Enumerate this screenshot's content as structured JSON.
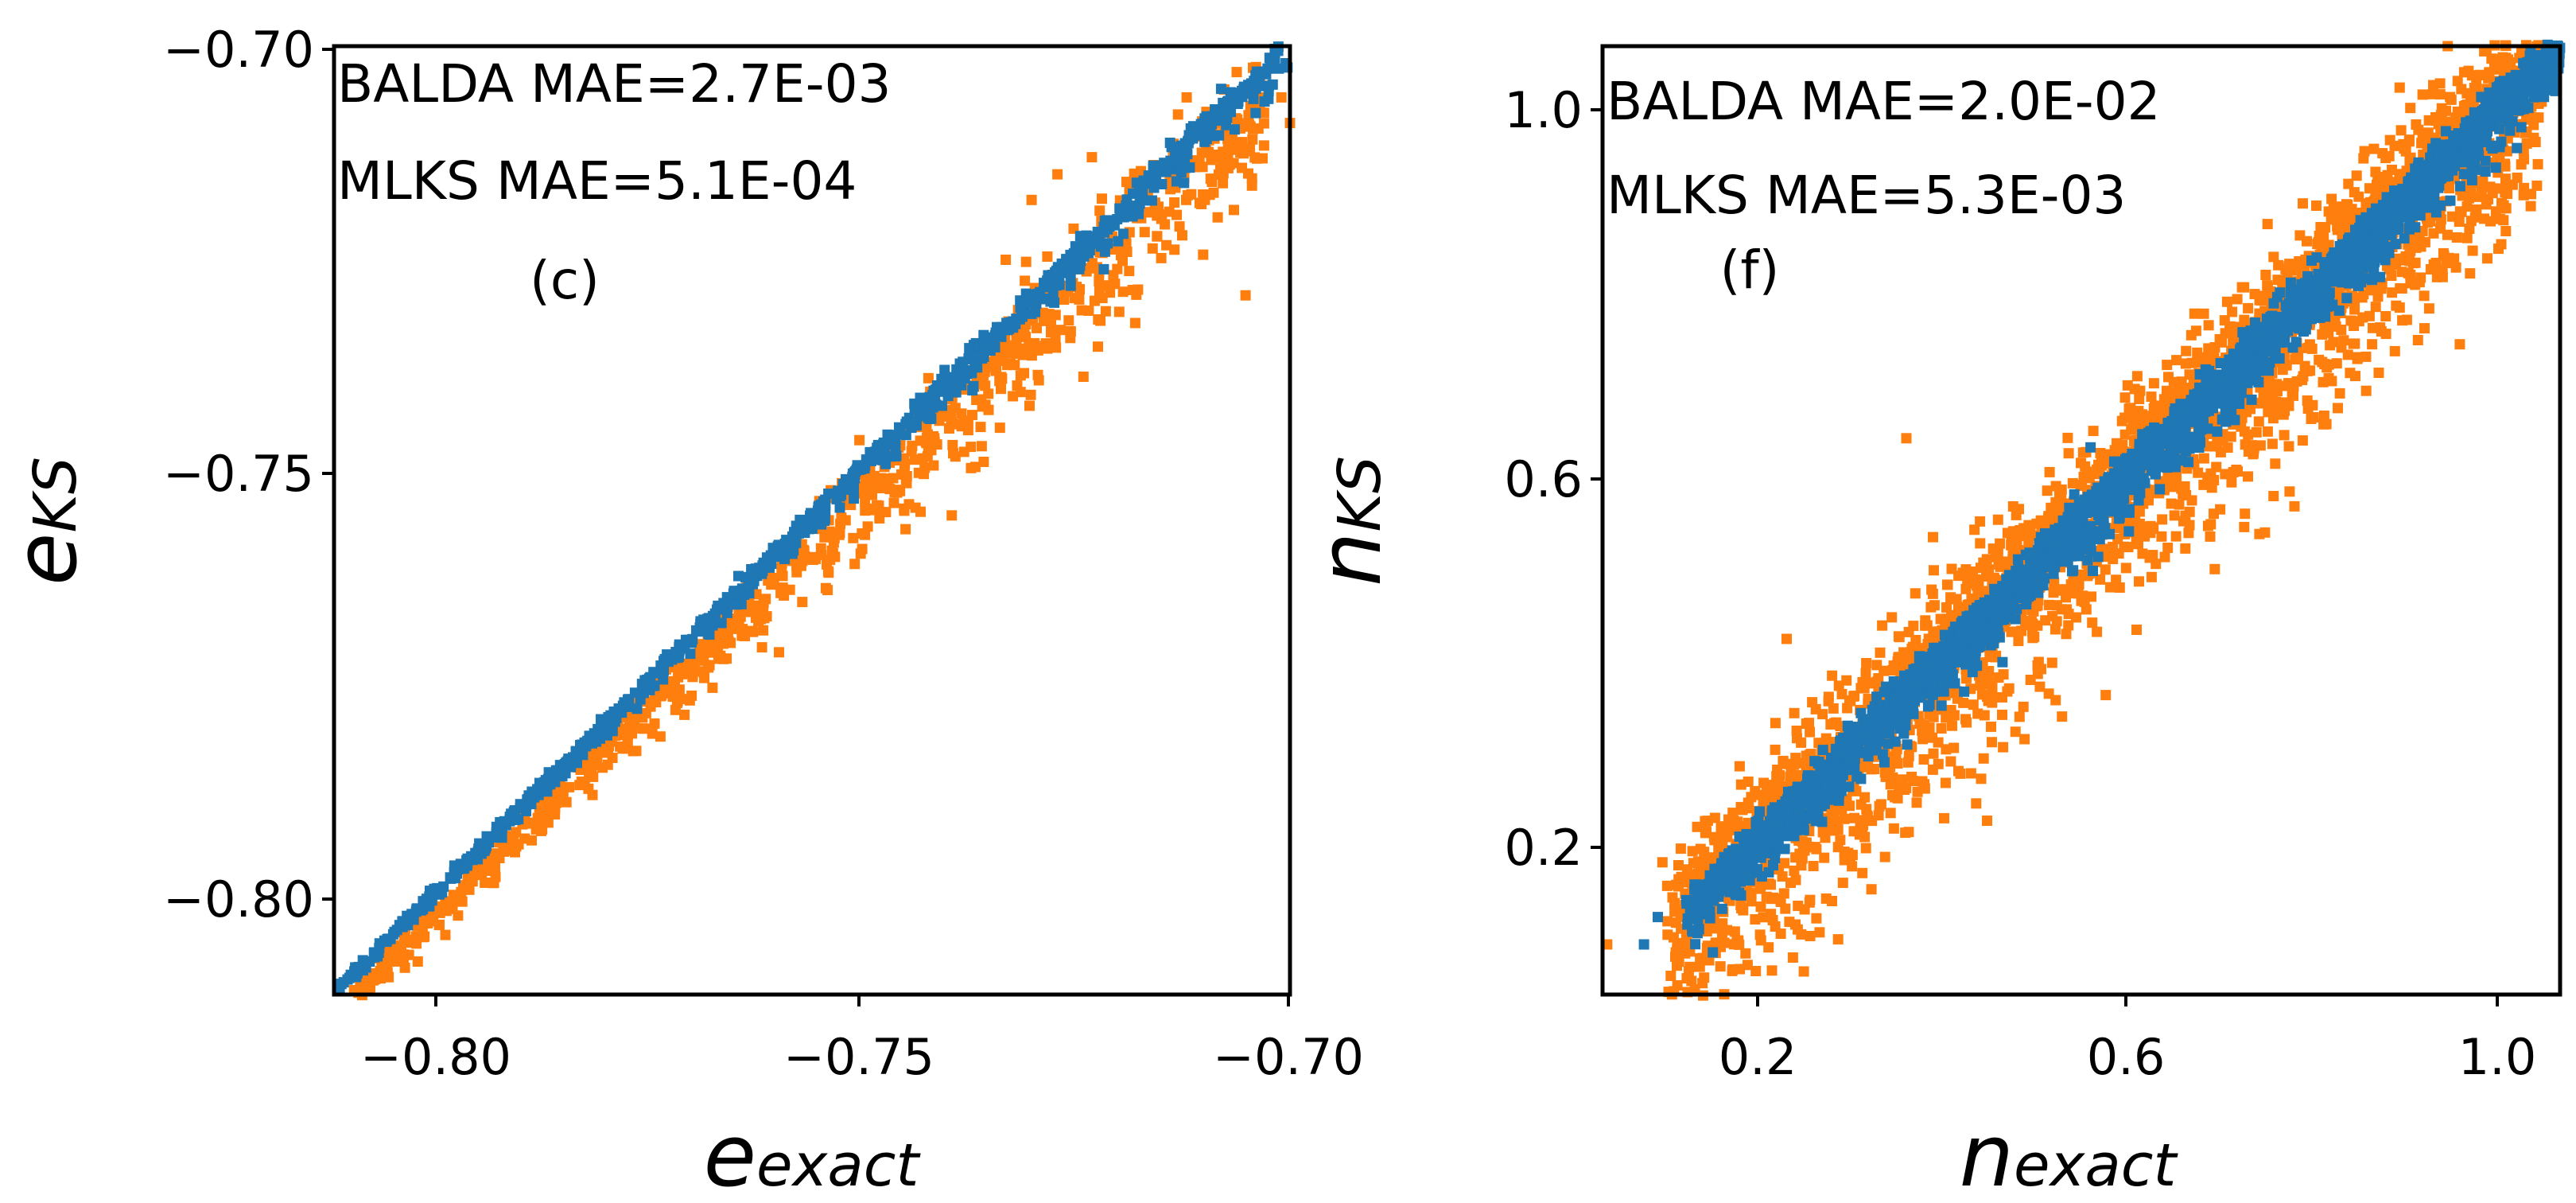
{
  "chart_data": [
    {
      "type": "scatter",
      "panel_label": "(c)",
      "xlabel": "e",
      "xlabel_sub": "exact",
      "ylabel": "e",
      "ylabel_sub": "KS",
      "xlim": [
        -0.811,
        -0.7
      ],
      "ylim": [
        -0.811,
        -0.7
      ],
      "xticks": [
        -0.8,
        -0.75,
        -0.7
      ],
      "yticks": [
        -0.8,
        -0.75,
        -0.7
      ],
      "xtick_labels": [
        "−0.80",
        "−0.75",
        "−0.70"
      ],
      "ytick_labels": [
        "−0.80",
        "−0.75",
        "−0.70"
      ],
      "annotations": [
        "BALDA MAE=2.7E-03",
        "MLKS MAE=5.1E-04"
      ],
      "series": [
        {
          "name": "BALDA",
          "color": "#ff7f0e",
          "generator": {
            "seed": 11,
            "n": 950,
            "x_range": [
              -0.811,
              -0.703
            ],
            "slope": 1.0,
            "offset": -0.002,
            "spread_start": 0.0006,
            "spread_end": 0.006,
            "skew_down": 0.75
          }
        },
        {
          "name": "MLKS",
          "color": "#1f77b4",
          "generator": {
            "seed": 23,
            "n": 900,
            "x_range": [
              -0.811,
              -0.701
            ],
            "slope": 1.0,
            "offset": 0.0002,
            "spread_start": 0.0004,
            "spread_end": 0.0016,
            "skew_down": 0.5
          }
        }
      ],
      "outliers": [
        {
          "series": "BALDA",
          "x": -0.733,
          "y": -0.725
        },
        {
          "series": "BALDA",
          "x": -0.73,
          "y": -0.718
        },
        {
          "series": "BALDA",
          "x": -0.727,
          "y": -0.715
        },
        {
          "series": "BALDA",
          "x": -0.723,
          "y": -0.713
        },
        {
          "series": "BALDA",
          "x": -0.721,
          "y": -0.728
        },
        {
          "series": "BALDA",
          "x": -0.713,
          "y": -0.708
        },
        {
          "series": "BALDA",
          "x": -0.712,
          "y": -0.706
        },
        {
          "series": "BALDA",
          "x": -0.709,
          "y": -0.71
        },
        {
          "series": "BALDA",
          "x": -0.702,
          "y": -0.702
        },
        {
          "series": "BALDA",
          "x": -0.701,
          "y": -0.706
        },
        {
          "series": "BALDA",
          "x": -0.7,
          "y": -0.709
        },
        {
          "series": "MLKS",
          "x": -0.712,
          "y": -0.712
        },
        {
          "series": "MLKS",
          "x": -0.708,
          "y": -0.705
        },
        {
          "series": "MLKS",
          "x": -0.706,
          "y": -0.7065
        },
        {
          "series": "MLKS",
          "x": -0.702,
          "y": -0.7045
        },
        {
          "series": "MLKS",
          "x": -0.7005,
          "y": -0.702
        },
        {
          "series": "MLKS",
          "x": -0.7003,
          "y": -0.7025
        }
      ]
    },
    {
      "type": "scatter",
      "panel_label": "(f)",
      "xlabel": "n",
      "xlabel_sub": "exact",
      "ylabel": "n",
      "ylabel_sub": "KS",
      "xlim": [
        0.03,
        1.07
      ],
      "ylim": [
        0.03,
        1.07
      ],
      "xticks": [
        0.2,
        0.6,
        1.0
      ],
      "yticks": [
        0.2,
        0.6,
        1.0
      ],
      "xtick_labels": [
        "0.2",
        "0.6",
        "1.0"
      ],
      "ytick_labels": [
        "0.2",
        "0.6",
        "1.0"
      ],
      "annotations": [
        "BALDA MAE=2.0E-02",
        "MLKS MAE=5.3E-03"
      ],
      "series": [
        {
          "name": "BALDA",
          "color": "#ff7f0e",
          "generator": {
            "seed": 37,
            "n": 3000,
            "x_range": [
              0.1,
              1.05
            ],
            "slope": 1.0,
            "offset": 0.0,
            "spread_start": 0.07,
            "spread_end": 0.07,
            "skew_down": 0.5
          }
        },
        {
          "name": "MLKS",
          "color": "#1f77b4",
          "generator": {
            "seed": 41,
            "n": 2800,
            "x_range": [
              0.12,
              1.07
            ],
            "slope": 1.0,
            "offset": 0.0,
            "spread_start": 0.02,
            "spread_end": 0.02,
            "skew_down": 0.5
          }
        }
      ],
      "outliers": [
        {
          "series": "BALDA",
          "x": 0.035,
          "y": 0.085
        },
        {
          "series": "BALDA",
          "x": 0.095,
          "y": 0.175
        },
        {
          "series": "BALDA",
          "x": 0.115,
          "y": 0.19
        },
        {
          "series": "BALDA",
          "x": 0.23,
          "y": 0.42
        },
        {
          "series": "BALDA",
          "x": 0.36,
          "y": 0.64
        },
        {
          "series": "BALDA",
          "x": 0.61,
          "y": 0.43
        },
        {
          "series": "BALDA",
          "x": 0.92,
          "y": 0.91
        },
        {
          "series": "BALDA",
          "x": 0.94,
          "y": 0.87
        },
        {
          "series": "MLKS",
          "x": 0.075,
          "y": 0.085
        },
        {
          "series": "MLKS",
          "x": 0.09,
          "y": 0.115
        },
        {
          "series": "MLKS",
          "x": 0.2,
          "y": 0.215
        },
        {
          "series": "MLKS",
          "x": 0.34,
          "y": 0.305
        },
        {
          "series": "MLKS",
          "x": 0.56,
          "y": 0.63
        },
        {
          "series": "MLKS",
          "x": 0.83,
          "y": 0.78
        }
      ]
    }
  ]
}
